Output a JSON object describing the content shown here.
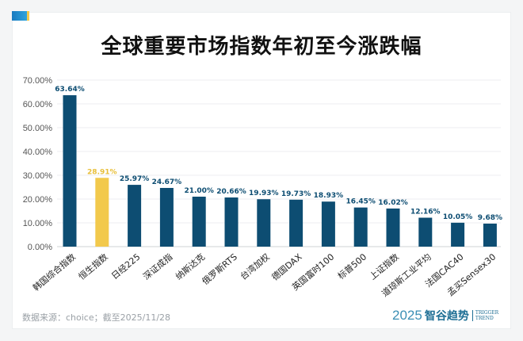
{
  "chart_data": {
    "type": "bar",
    "title": "全球重要市场指数年初至今涨跌幅",
    "categories": [
      "韩国综合指数",
      "恒生指数",
      "日经225",
      "深证成指",
      "纳斯达克",
      "俄罗斯RTS",
      "台湾加权",
      "德国DAX",
      "英国富时100",
      "标普500",
      "上证指数",
      "道琼斯工业平均",
      "法国CAC40",
      "孟买Sensex30"
    ],
    "values": [
      63.64,
      28.91,
      25.97,
      24.67,
      21.0,
      20.66,
      19.93,
      19.73,
      18.93,
      16.45,
      16.02,
      12.16,
      10.05,
      9.68
    ],
    "data_labels": [
      "63.64%",
      "28.91%",
      "25.97%",
      "24.67%",
      "21.00%",
      "20.66%",
      "19.93%",
      "19.73%",
      "18.93%",
      "16.45%",
      "16.02%",
      "12.16%",
      "10.05%",
      "9.68%"
    ],
    "highlight_index": 1,
    "colors": {
      "default": "#0d4d72",
      "highlight": "#f2c94c",
      "label_default": "#0d4d72",
      "label_highlight": "#e8bf3a"
    },
    "ylim": [
      0,
      70
    ],
    "yticks": [
      "0.00%",
      "10.00%",
      "20.00%",
      "30.00%",
      "40.00%",
      "50.00%",
      "60.00%",
      "70.00%"
    ],
    "grid": true,
    "xlabel": "",
    "ylabel": ""
  },
  "footer": {
    "source": "数据来源：choice；截至2025/11/28",
    "brand_year": "2025",
    "brand_name": "智谷趋势",
    "brand_en_1": "TRIGGER",
    "brand_en_2": "TREND"
  }
}
